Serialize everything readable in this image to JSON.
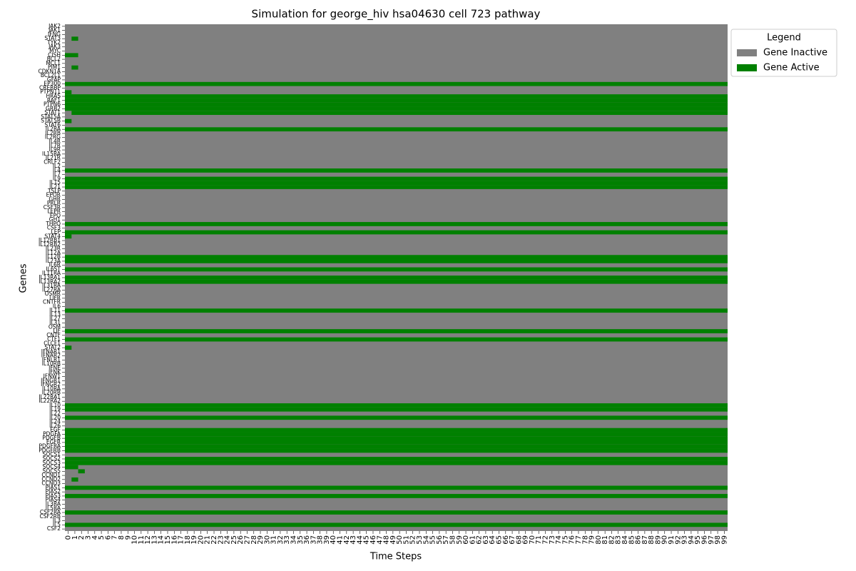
{
  "chart_data": {
    "type": "heatmap",
    "title": "Simulation for george_hiv hsa04630 cell 723 pathway",
    "x_label": "Time Steps",
    "y_label": "Genes",
    "legend_title": "Legend",
    "series": [
      {
        "name": "Gene Inactive",
        "color": "#808080"
      },
      {
        "name": "Gene Active",
        "color": "#008000"
      }
    ],
    "x": [
      0,
      1,
      2,
      3,
      4,
      5,
      6,
      7,
      8,
      9,
      10,
      11,
      12,
      13,
      14,
      15,
      16,
      17,
      18,
      19,
      20,
      21,
      22,
      23,
      24,
      25,
      26,
      27,
      28,
      29,
      30,
      31,
      32,
      33,
      34,
      35,
      36,
      37,
      38,
      39,
      40,
      41,
      42,
      43,
      44,
      45,
      46,
      47,
      48,
      49,
      50,
      51,
      52,
      53,
      54,
      55,
      56,
      57,
      58,
      59,
      60,
      61,
      62,
      63,
      64,
      65,
      66,
      67,
      68,
      69,
      70,
      71,
      72,
      73,
      74,
      75,
      76,
      77,
      78,
      79,
      80,
      81,
      82,
      83,
      84,
      85,
      86,
      87,
      88,
      89,
      90,
      91,
      92,
      93,
      94,
      95,
      96,
      97,
      98,
      99
    ],
    "genes": [
      "JAK2",
      "JAK1",
      "IFNG",
      "STAT3",
      "TYK2",
      "JAK3",
      "MYC",
      "CISH",
      "BCL2",
      "MCL1",
      "PIM1",
      "CDKN1A",
      "BCL2L1",
      "GFAP",
      "EP300",
      "CREBBP",
      "PTPN11",
      "HRAS",
      "RAF1",
      "PTPN6",
      "GRB2",
      "STAT1",
      "STAT5A",
      "STAT5B",
      "STAT6",
      "IL2RA",
      "IL2RB",
      "IL2RG",
      "IL4R",
      "IL7R",
      "IL9R",
      "IL15RA",
      "IL21R",
      "CRLF2",
      "IL2",
      "IL4",
      "IL7",
      "IL9",
      "IL15",
      "IL21",
      "TSLP",
      "EPOR",
      "GHR",
      "PRLR",
      "CSF3R",
      "LEPR",
      "EPO",
      "GH1",
      "THPO",
      "CSF3",
      "LEP",
      "STAT4",
      "IL12RB1",
      "IL12RB2",
      "IL23R",
      "IL12A",
      "IL12B",
      "IL23A",
      "IL6R",
      "IL6ST",
      "IL11RA",
      "IL13RA1",
      "IL13RA2",
      "IL31RA",
      "IL27RA",
      "OSMR",
      "LIFR",
      "CNTFR",
      "IL6",
      "IL11",
      "IL13",
      "IL27",
      "IL31",
      "OSM",
      "LIF",
      "CNTF",
      "CTF1",
      "CLCF1",
      "STAT2",
      "IFNAR1",
      "IFNAR2",
      "IFNLR1",
      "IL10RB",
      "IFNE",
      "IFNK",
      "IFNW1",
      "IFNGR1",
      "IFNGR2",
      "IL10RA",
      "IL20RB",
      "IL22RA1",
      "IL22RA2",
      "IL10",
      "IL19",
      "IL22",
      "IL20",
      "IL24",
      "IL26",
      "EGF",
      "PDGFA",
      "PDGFB",
      "EGFR",
      "PDGFRA",
      "PDGFRB",
      "SOCS1",
      "SOCS2",
      "SOCS3",
      "SOCS4",
      "SOCS5",
      "CCND1",
      "CCND2",
      "CCND3",
      "PIAS1",
      "PIAS2",
      "PIAS3",
      "PIAS4",
      "IL3RA",
      "IL5RA",
      "CSF2RA",
      "CSF2RB",
      "IL3",
      "IL5",
      "CSF2"
    ],
    "active_intervals": [
      [],
      [],
      [],
      [
        [
          1,
          1
        ]
      ],
      [],
      [],
      [],
      [
        [
          0,
          1
        ]
      ],
      [],
      [],
      [
        [
          1,
          1
        ]
      ],
      [],
      [],
      [],
      [
        [
          0,
          99
        ]
      ],
      [],
      [
        [
          0,
          0
        ]
      ],
      [
        [
          0,
          99
        ]
      ],
      [
        [
          0,
          99
        ]
      ],
      [
        [
          0,
          99
        ]
      ],
      [
        [
          0,
          99
        ]
      ],
      [
        [
          1,
          99
        ]
      ],
      [],
      [
        [
          0,
          0
        ]
      ],
      [],
      [
        [
          0,
          99
        ]
      ],
      [],
      [],
      [],
      [],
      [],
      [],
      [],
      [],
      [],
      [
        [
          0,
          99
        ]
      ],
      [],
      [
        [
          0,
          99
        ]
      ],
      [
        [
          0,
          99
        ]
      ],
      [
        [
          0,
          99
        ]
      ],
      [],
      [],
      [],
      [],
      [],
      [],
      [],
      [],
      [
        [
          0,
          99
        ]
      ],
      [],
      [
        [
          0,
          99
        ]
      ],
      [
        [
          0,
          0
        ]
      ],
      [],
      [],
      [],
      [],
      [
        [
          0,
          99
        ]
      ],
      [
        [
          0,
          99
        ]
      ],
      [],
      [
        [
          0,
          99
        ]
      ],
      [],
      [
        [
          0,
          99
        ]
      ],
      [
        [
          0,
          99
        ]
      ],
      [],
      [],
      [],
      [],
      [],
      [],
      [
        [
          0,
          99
        ]
      ],
      [],
      [],
      [],
      [],
      [
        [
          0,
          99
        ]
      ],
      [],
      [
        [
          0,
          99
        ]
      ],
      [],
      [
        [
          0,
          0
        ]
      ],
      [],
      [],
      [],
      [],
      [],
      [],
      [],
      [],
      [],
      [],
      [],
      [],
      [],
      [
        [
          0,
          99
        ]
      ],
      [
        [
          0,
          99
        ]
      ],
      [],
      [
        [
          0,
          99
        ]
      ],
      [],
      [],
      [
        [
          0,
          99
        ]
      ],
      [
        [
          0,
          99
        ]
      ],
      [
        [
          0,
          99
        ]
      ],
      [
        [
          0,
          99
        ]
      ],
      [
        [
          0,
          99
        ]
      ],
      [
        [
          0,
          99
        ]
      ],
      [],
      [
        [
          0,
          99
        ]
      ],
      [
        [
          0,
          99
        ]
      ],
      [
        [
          0,
          1
        ]
      ],
      [
        [
          2,
          2
        ]
      ],
      [],
      [
        [
          1,
          1
        ]
      ],
      [],
      [
        [
          0,
          99
        ]
      ],
      [],
      [
        [
          0,
          99
        ]
      ],
      [],
      [],
      [],
      [
        [
          0,
          99
        ]
      ],
      [],
      [],
      [
        [
          0,
          99
        ]
      ],
      []
    ]
  }
}
